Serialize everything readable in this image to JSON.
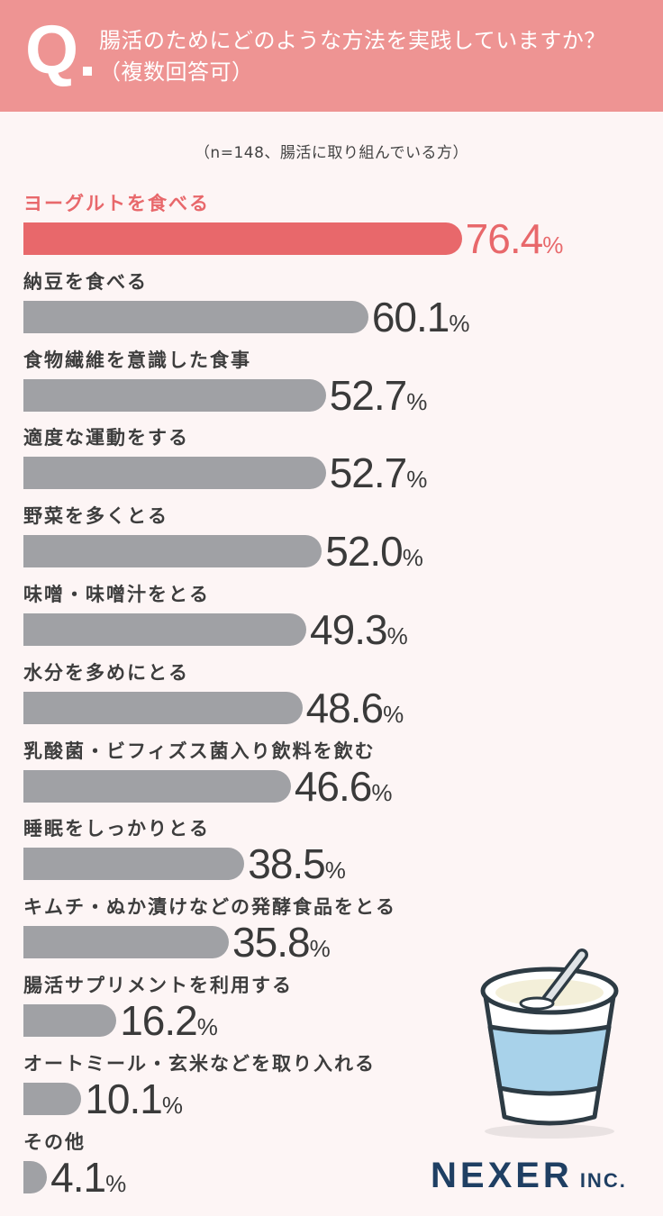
{
  "header": {
    "q_mark": "Q",
    "question": "腸活のためにどのような方法を実践していますか？（複数回答可）"
  },
  "sample_note": "（n=148、腸活に取り組んでいる方）",
  "chart_data": {
    "type": "bar",
    "orientation": "horizontal",
    "categories": [
      "ヨーグルトを食べる",
      "納豆を食べる",
      "食物繊維を意識した食事",
      "適度な運動をする",
      "野菜を多くとる",
      "味噌・味噌汁をとる",
      "水分を多めにとる",
      "乳酸菌・ビフィズス菌入り飲料を飲む",
      "睡眠をしっかりとる",
      "キムチ・ぬか漬けなどの発酵食品をとる",
      "腸活サプリメントを利用する",
      "オートミール・玄米などを取り入れる",
      "その他"
    ],
    "values": [
      76.4,
      60.1,
      52.7,
      52.7,
      52.0,
      49.3,
      48.6,
      46.6,
      38.5,
      35.8,
      16.2,
      10.1,
      4.1
    ],
    "value_labels": [
      "76.4",
      "60.1",
      "52.7",
      "52.7",
      "52.0",
      "49.3",
      "48.6",
      "46.6",
      "38.5",
      "35.8",
      "16.2",
      "10.1",
      "4.1"
    ],
    "unit": "%",
    "xlim": [
      0,
      100
    ],
    "highlight_index": 0,
    "colors": {
      "highlight": "#e8686b",
      "bar": "#a0a1a5"
    }
  },
  "illustration": "yogurt-cup-icon",
  "logo": {
    "main": "NEXER",
    "sub": "INC."
  }
}
